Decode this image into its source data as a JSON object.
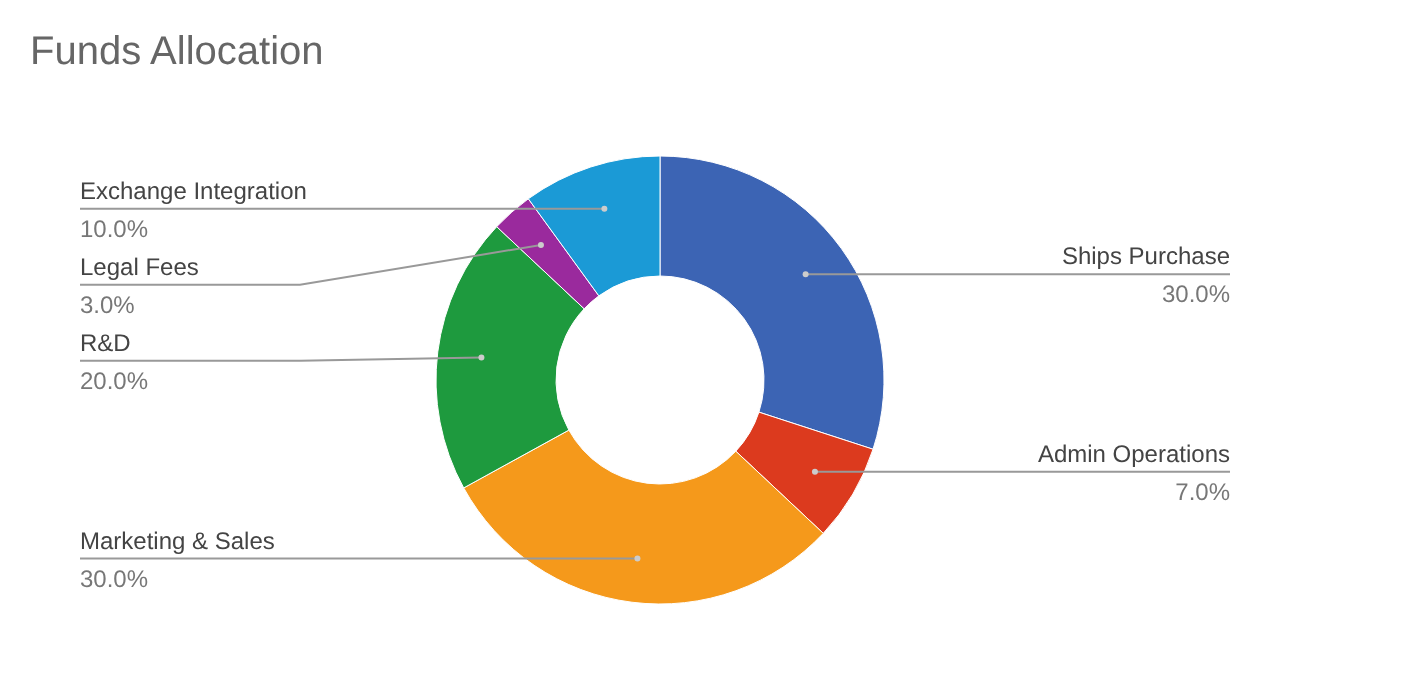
{
  "chart_data": {
    "type": "donut",
    "title": "Funds Allocation",
    "categories": [
      "Ships Purchase",
      "Admin Operations",
      "Marketing & Sales",
      "R&D",
      "Legal Fees",
      "Exchange Integration"
    ],
    "values": [
      30,
      7,
      30,
      20,
      3,
      10
    ],
    "value_labels": [
      "30.0%",
      "7.0%",
      "30.0%",
      "20.0%",
      "3.0%",
      "10.0%"
    ],
    "colors": [
      "#3c64b4",
      "#dc3a1e",
      "#f5991b",
      "#1e9a3e",
      "#9a2a9d",
      "#1b9ad6"
    ]
  }
}
